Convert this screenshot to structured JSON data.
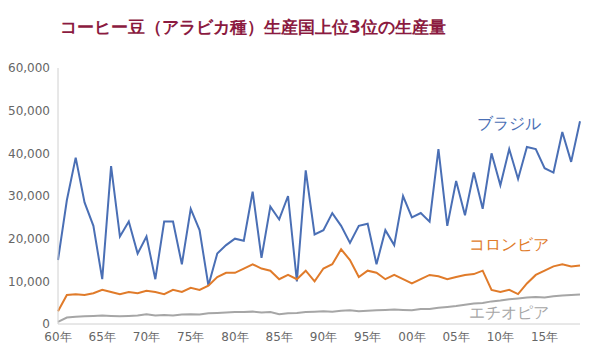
{
  "chart_data": {
    "type": "line",
    "title": "コーヒー豆（アラビカ種）生産国上位3位の生産量",
    "categories": [
      "60年",
      null,
      null,
      null,
      null,
      "65年",
      null,
      null,
      null,
      null,
      "70年",
      null,
      null,
      null,
      null,
      "75年",
      null,
      null,
      null,
      null,
      "80年",
      null,
      null,
      null,
      null,
      "85年",
      null,
      null,
      null,
      null,
      "90年",
      null,
      null,
      null,
      null,
      "95年",
      null,
      null,
      null,
      null,
      "00年",
      null,
      null,
      null,
      null,
      "05年",
      null,
      null,
      null,
      null,
      "10年",
      null,
      null,
      null,
      null,
      "15年",
      null,
      null,
      null,
      null
    ],
    "series": [
      {
        "name": "ブラジル",
        "color": "#4a6fb5",
        "values": [
          15000,
          29000,
          39000,
          28500,
          23000,
          10500,
          37000,
          20500,
          24000,
          16500,
          20500,
          10500,
          24000,
          24000,
          14000,
          27000,
          22000,
          9000,
          16500,
          18500,
          20000,
          19500,
          31000,
          15500,
          27500,
          24500,
          30000,
          10000,
          36000,
          21000,
          22000,
          26000,
          23000,
          19000,
          23000,
          23500,
          14000,
          22000,
          18500,
          30000,
          25000,
          26000,
          24000,
          41000,
          23000,
          33500,
          25500,
          35500,
          27000,
          40000,
          32500,
          41000,
          34000,
          41500,
          41000,
          36500,
          35500,
          45000,
          38000,
          47500
        ]
      },
      {
        "name": "コロンビア",
        "color": "#e07b2a",
        "values": [
          3000,
          6800,
          7000,
          6800,
          7200,
          8000,
          7500,
          7000,
          7500,
          7200,
          7800,
          7500,
          7000,
          8000,
          7500,
          8500,
          8000,
          9000,
          11000,
          12000,
          12000,
          13000,
          14000,
          13000,
          12500,
          10500,
          11500,
          10500,
          12500,
          10000,
          13000,
          14000,
          17500,
          15000,
          11000,
          12500,
          12000,
          10500,
          11500,
          10500,
          9500,
          10500,
          11500,
          11200,
          10500,
          11000,
          11500,
          11700,
          12500,
          8000,
          7500,
          8000,
          7000,
          9500,
          11500,
          12500,
          13500,
          14000,
          13500,
          13700
        ]
      },
      {
        "name": "エチオピア",
        "color": "#a6a6a6",
        "values": [
          500,
          1500,
          1700,
          1800,
          1900,
          2000,
          1900,
          1800,
          1900,
          2000,
          2300,
          2000,
          2100,
          2000,
          2200,
          2300,
          2200,
          2500,
          2600,
          2700,
          2800,
          2800,
          2900,
          2700,
          2800,
          2300,
          2500,
          2600,
          2800,
          2900,
          3000,
          2900,
          3100,
          3200,
          3000,
          3100,
          3200,
          3300,
          3400,
          3300,
          3200,
          3500,
          3500,
          3800,
          4000,
          4200,
          4500,
          4800,
          4900,
          5300,
          5500,
          5800,
          6000,
          6200,
          6300,
          6200,
          6500,
          6700,
          6800,
          6900
        ]
      }
    ],
    "ylim": [
      0,
      60000
    ],
    "yticks": [
      0,
      {
        "value": 10000,
        "label": "10,000"
      },
      {
        "value": 20000,
        "label": "20,000"
      },
      {
        "value": 30000,
        "label": "30,000"
      },
      {
        "value": 40000,
        "label": "40,000"
      },
      {
        "value": 50000,
        "label": "50,000"
      },
      {
        "value": 60000,
        "label": "60,000"
      }
    ],
    "grid": false,
    "marker": "none",
    "line_style": "solid"
  }
}
